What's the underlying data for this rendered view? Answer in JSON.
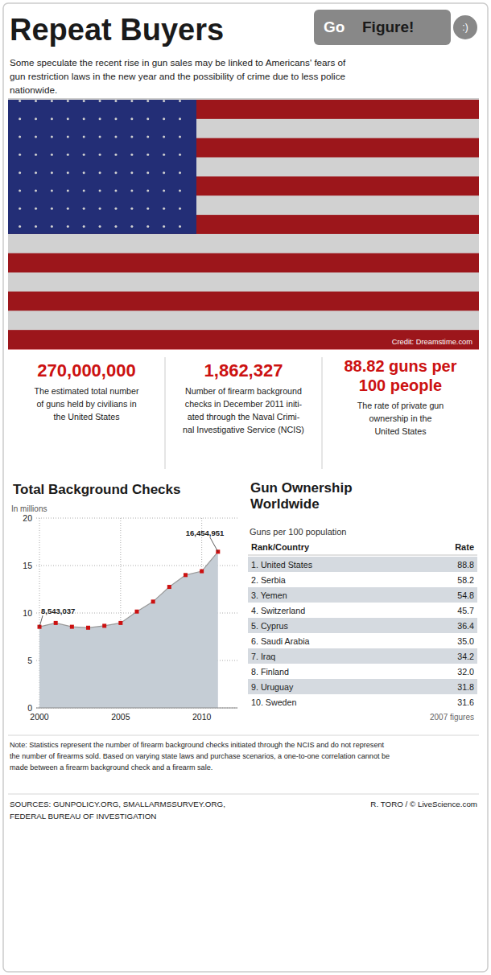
{
  "chart_data": {
    "type": "area",
    "title": "Total Background Checks",
    "subtitle": "In millions",
    "x": [
      2000,
      2001,
      2002,
      2003,
      2004,
      2005,
      2006,
      2007,
      2008,
      2009,
      2010,
      2011
    ],
    "values": [
      8.543037,
      8.95,
      8.55,
      8.45,
      8.65,
      8.95,
      10.15,
      11.2,
      12.75,
      14.0,
      14.4,
      16.454951
    ],
    "value_labels": [
      "8,543,037",
      null,
      null,
      null,
      null,
      null,
      null,
      null,
      null,
      null,
      null,
      "16,454,951"
    ],
    "data_labels": true,
    "color": "#c5cdd5",
    "marker": "square",
    "xlim": [
      1999.8,
      2012.2
    ],
    "xticks": [
      2000,
      2005,
      2010
    ],
    "ylim": [
      0,
      20
    ],
    "yticks": [
      0,
      5,
      10,
      15,
      20
    ],
    "grid": true
  },
  "page": {
    "title": "Repeat Buyers",
    "badge": [
      "Go",
      "Figure!",
      ":)"
    ],
    "subtitle": "Some speculate the recent rise in gun sales may be linked to Americans' fears of\ngun restriction laws in the new year and the possibility of crime due to less police\nnationwide.",
    "credit": "Credit: Dreamstime.com",
    "stats": [
      {
        "value": "270,000,000",
        "desc": "The estimated total number\nof guns held by civilians in\nthe United States"
      },
      {
        "value": "1,862,327",
        "desc": "Number of firearm background\nchecks in December 2011 initi-\nated through the Naval Crimi-\nnal Investigative Service (NCIS)"
      },
      {
        "value": "88.82 guns per\n100 people",
        "desc": "The rate of private gun\nownership in the\nUnited States"
      }
    ],
    "table": {
      "title": "Gun Ownership\nWorldwide",
      "subtitle": "Guns per 100 population",
      "header": [
        "Rank/Country",
        "Rate"
      ],
      "rows": [
        [
          "1. United States",
          "88.8"
        ],
        [
          "2. Serbia",
          "58.2"
        ],
        [
          "3. Yemen",
          "54.8"
        ],
        [
          "4. Switzerland",
          "45.7"
        ],
        [
          "5. Cyprus",
          "36.4"
        ],
        [
          "6. Saudi Arabia",
          "35.0"
        ],
        [
          "7. Iraq",
          "34.2"
        ],
        [
          "8. Finland",
          "32.0"
        ],
        [
          "9. Uruguay",
          "31.8"
        ],
        [
          "10. Sweden",
          "31.6"
        ]
      ],
      "shaded_rows": [
        0,
        2,
        4,
        6,
        8
      ],
      "note": "2007 figures"
    },
    "note": "Note: Statistics represent the number of firearm background checks initiated through the NCIS and do not represent\nthe number of firearms sold. Based on varying state laws and purchase scenarios, a one-to-one correlation cannot be\nmade between a firearm background check and a firearm sale.",
    "sources": "SOURCES: GUNPOLICY.ORG, SMALLARMSSURVEY.ORG,\nFEDERAL BUREAU OF INVESTIGATION",
    "credit_right": "R. TORO / © LiveScience.com",
    "accent_color": "#cc1111",
    "text_color": "#1a1a1a",
    "shade_color": "#d5dae0",
    "badge_color": "#888888"
  }
}
